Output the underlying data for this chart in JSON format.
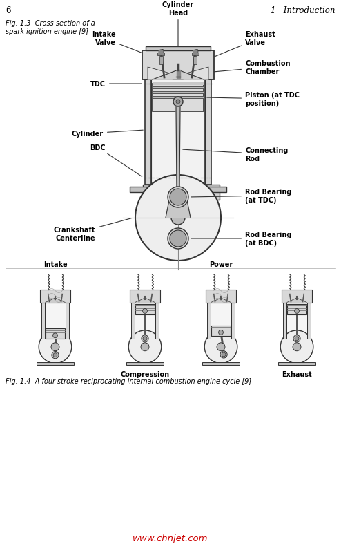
{
  "page_number_left": "6",
  "page_number_right": "1   Introduction",
  "fig1_caption_line1": "Fig. 1.3  Cross section of a",
  "fig1_caption_line2": "spark ignition engine [9]",
  "fig2_caption": "Fig. 1.4  A four-stroke reciprocating internal combustion engine cycle [9]",
  "watermark": "www.chnjet.com",
  "watermark_color": "#cc0000",
  "bg_color": "#ffffff",
  "text_color": "#000000",
  "line_color": "#333333",
  "fill_light": "#e8e8e8",
  "fill_mid": "#cccccc",
  "fill_dark": "#aaaaaa"
}
